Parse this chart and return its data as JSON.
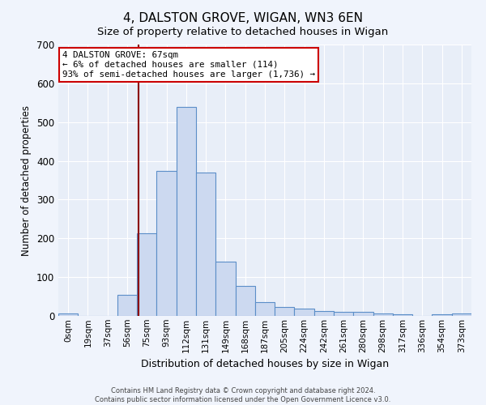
{
  "title": "4, DALSTON GROVE, WIGAN, WN3 6EN",
  "subtitle": "Size of property relative to detached houses in Wigan",
  "xlabel": "Distribution of detached houses by size in Wigan",
  "ylabel": "Number of detached properties",
  "bar_labels": [
    "0sqm",
    "19sqm",
    "37sqm",
    "56sqm",
    "75sqm",
    "93sqm",
    "112sqm",
    "131sqm",
    "149sqm",
    "168sqm",
    "187sqm",
    "205sqm",
    "224sqm",
    "242sqm",
    "261sqm",
    "280sqm",
    "298sqm",
    "317sqm",
    "336sqm",
    "354sqm",
    "373sqm"
  ],
  "bar_values": [
    7,
    0,
    0,
    55,
    213,
    375,
    540,
    370,
    140,
    78,
    35,
    22,
    18,
    12,
    11,
    10,
    7,
    5,
    0,
    5,
    7
  ],
  "bar_color": "#ccd9f0",
  "bar_edge_color": "#5b8ec8",
  "bg_color": "#e8eef8",
  "grid_color": "#ffffff",
  "property_line_color": "#8b0000",
  "annotation_line1": "4 DALSTON GROVE: 67sqm",
  "annotation_line2": "← 6% of detached houses are smaller (114)",
  "annotation_line3": "93% of semi-detached houses are larger (1,736) →",
  "annotation_box_color": "#ffffff",
  "annotation_box_edge_color": "#cc0000",
  "ylim": [
    0,
    700
  ],
  "yticks": [
    0,
    100,
    200,
    300,
    400,
    500,
    600,
    700
  ],
  "footer1": "Contains HM Land Registry data © Crown copyright and database right 2024.",
  "footer2": "Contains public sector information licensed under the Open Government Licence v3.0.",
  "title_fontsize": 11,
  "subtitle_fontsize": 9.5
}
